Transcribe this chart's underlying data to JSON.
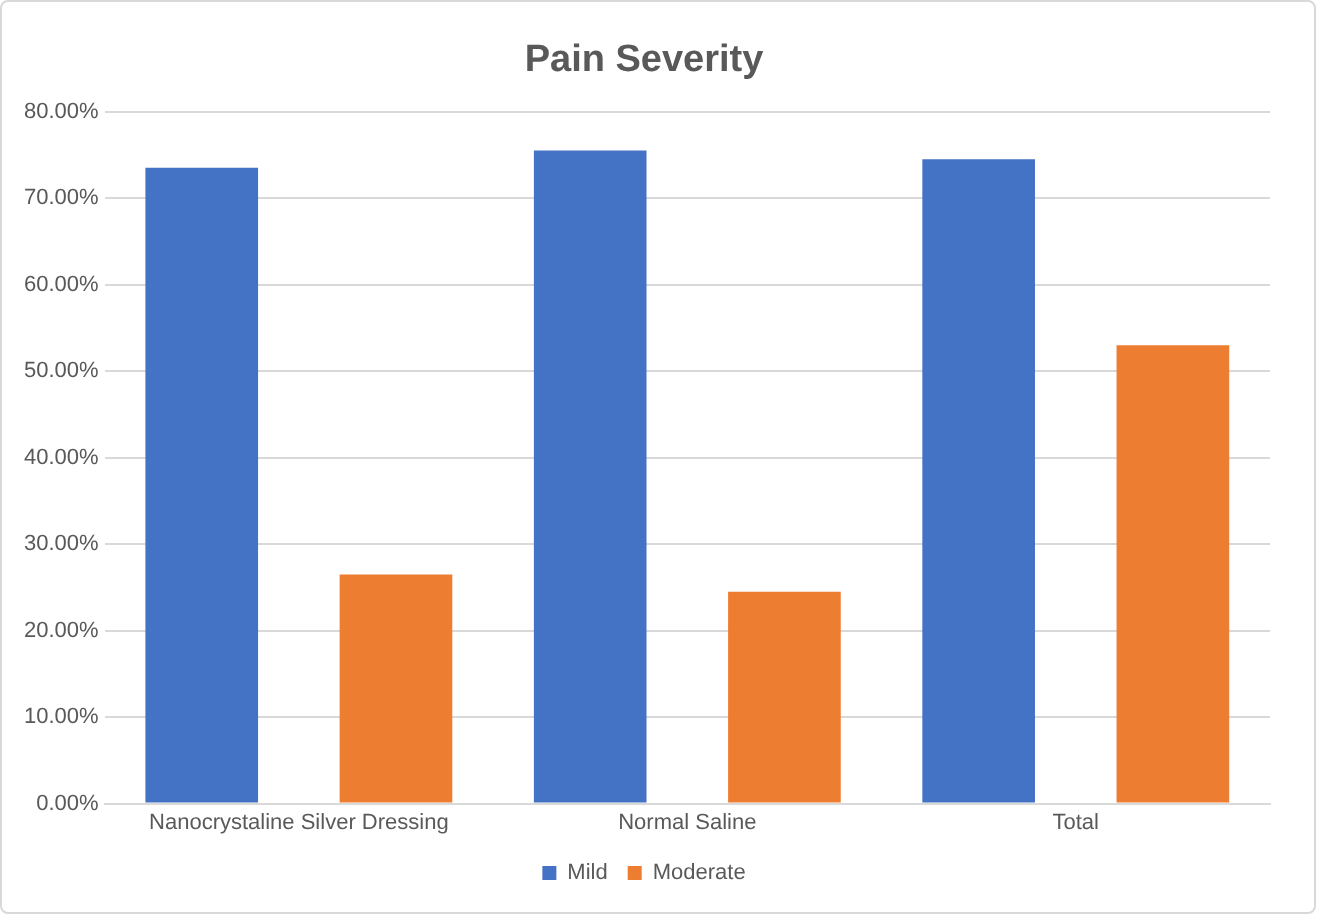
{
  "chart_data": {
    "type": "bar",
    "title": "Pain Severity",
    "categories": [
      "Nanocrystaline Silver Dressing",
      "Normal Saline",
      "Total"
    ],
    "series": [
      {
        "name": "Mild",
        "color": "#4472c4",
        "values": [
          73.5,
          75.5,
          74.5
        ]
      },
      {
        "name": "Moderate",
        "color": "#ed7d31",
        "values": [
          26.5,
          24.5,
          53
        ]
      }
    ],
    "ylim": [
      0,
      80
    ],
    "yticks": [
      {
        "value": 0,
        "label": "0.00%"
      },
      {
        "value": 10,
        "label": "10.00%"
      },
      {
        "value": 20,
        "label": "20.00%"
      },
      {
        "value": 30,
        "label": "30.00%"
      },
      {
        "value": 40,
        "label": "40.00%"
      },
      {
        "value": 50,
        "label": "50.00%"
      },
      {
        "value": 60,
        "label": "60.00%"
      },
      {
        "value": 70,
        "label": "70.00%"
      },
      {
        "value": 80,
        "label": "80.00%"
      }
    ],
    "grid": "y",
    "legend": "bottom"
  }
}
